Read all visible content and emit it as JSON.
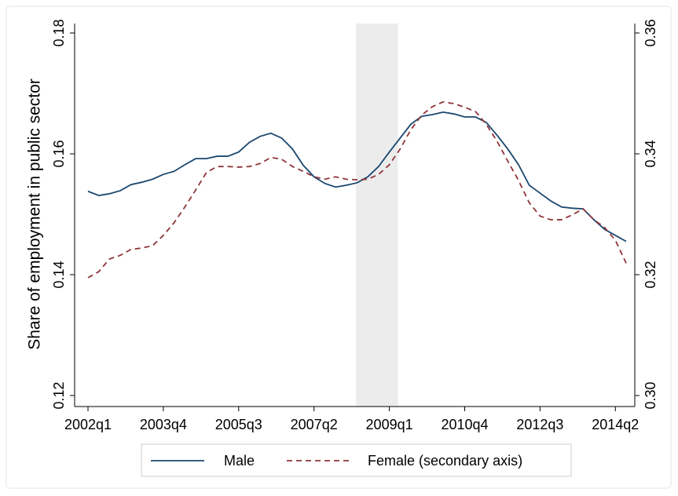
{
  "chart_data": {
    "type": "line",
    "y_label": "Share of employment in public sector",
    "categories": [
      "2002q1",
      null,
      null,
      null,
      null,
      null,
      null,
      "2003q4",
      null,
      null,
      null,
      null,
      null,
      null,
      "2005q3",
      null,
      null,
      null,
      null,
      null,
      null,
      "2007q2",
      null,
      null,
      null,
      null,
      null,
      null,
      "2009q1",
      null,
      null,
      null,
      null,
      null,
      null,
      "2010q4",
      null,
      null,
      null,
      null,
      null,
      null,
      "2012q3",
      null,
      null,
      null,
      null,
      null,
      null,
      "2014q2",
      null
    ],
    "series": [
      {
        "name": "Male",
        "color": "#1a476f",
        "dash": false,
        "axis": "y",
        "values": [
          0.1538,
          0.1531,
          0.1534,
          0.1539,
          0.1549,
          0.1553,
          0.1558,
          0.1566,
          0.1571,
          0.1582,
          0.1592,
          0.1592,
          0.1596,
          0.1596,
          0.1603,
          0.1619,
          0.1629,
          0.1634,
          0.1626,
          0.1608,
          0.1581,
          0.1562,
          0.1551,
          0.1545,
          0.1548,
          0.1552,
          0.1562,
          0.1579,
          0.1603,
          0.1626,
          0.1649,
          0.1662,
          0.1665,
          0.1669,
          0.1666,
          0.1661,
          0.1661,
          0.1652,
          0.1631,
          0.1608,
          0.1582,
          0.1548,
          0.1535,
          0.1522,
          0.1512,
          0.151,
          0.1509,
          0.1491,
          0.1475,
          0.1465,
          0.1455
        ]
      },
      {
        "name": "Female (secondary axis)",
        "color": "#90353b",
        "dash": true,
        "axis": "y2",
        "values": [
          0.3195,
          0.3205,
          0.3226,
          0.3232,
          0.3242,
          0.3244,
          0.3248,
          0.3265,
          0.3286,
          0.3312,
          0.334,
          0.3369,
          0.3379,
          0.3379,
          0.3378,
          0.3379,
          0.3384,
          0.3394,
          0.3391,
          0.3379,
          0.3371,
          0.3362,
          0.3358,
          0.3362,
          0.3358,
          0.3357,
          0.3358,
          0.3366,
          0.3382,
          0.3408,
          0.344,
          0.3464,
          0.3478,
          0.3486,
          0.3483,
          0.3477,
          0.347,
          0.3449,
          0.3421,
          0.3388,
          0.3356,
          0.3319,
          0.3297,
          0.3291,
          0.3291,
          0.3299,
          0.3309,
          0.3291,
          0.3278,
          0.3257,
          0.3219
        ]
      }
    ],
    "ylim": [
      0.12,
      0.18
    ],
    "yticks": [
      0.12,
      0.14,
      0.16,
      0.18
    ],
    "y2lim": [
      0.3,
      0.36
    ],
    "y2ticks": [
      {
        "value": 0.3,
        "label": "0.30"
      },
      0.32,
      0.34,
      0.36
    ],
    "shaded_band": [
      24.9,
      28.8
    ],
    "shade_color": "#ececec",
    "legend": "bottom"
  }
}
